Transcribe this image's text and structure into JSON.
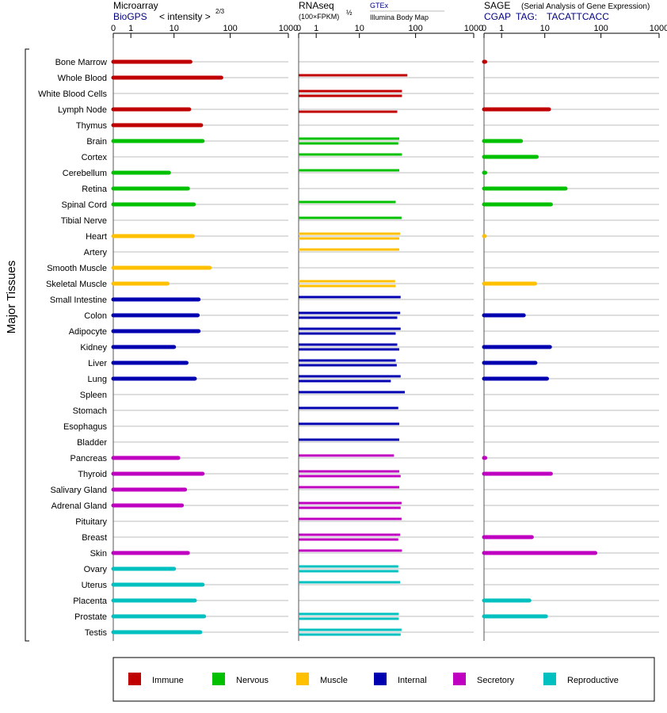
{
  "header": {
    "microarray": {
      "title": "Microarray",
      "source": "BioGPS",
      "unit": "< intensity >",
      "unit_exp": "2/3"
    },
    "rnaseq": {
      "title": "RNAseq",
      "unit": "(100×FPKM)",
      "unit_exp": "½",
      "source_a": "GTEx",
      "source_b": "Illumina Body Map"
    },
    "sage": {
      "title": "SAGE",
      "subtitle": "(Serial Analysis of Gene Expression)",
      "source": "CGAP",
      "tag_label": "TAG:",
      "tag": "TACATTCACC"
    },
    "axis_ticks": [
      "0",
      "1",
      "10",
      "100",
      "1000"
    ],
    "ylabel": "Major Tissues"
  },
  "legend": [
    {
      "label": "Immune",
      "color": "#c00000"
    },
    {
      "label": "Nervous",
      "color": "#00c000"
    },
    {
      "label": "Muscle",
      "color": "#ffc000"
    },
    {
      "label": "Internal",
      "color": "#0000b0"
    },
    {
      "label": "Secretory",
      "color": "#c000c0"
    },
    {
      "label": "Reproductive",
      "color": "#00c0c0"
    }
  ],
  "chart_data": {
    "type": "bar",
    "orientation": "horizontal",
    "xscale": "log1p",
    "xlim": [
      0,
      1000
    ],
    "categories": [
      "Bone Marrow",
      "Whole Blood",
      "White Blood Cells",
      "Lymph Node",
      "Thymus",
      "Brain",
      "Cortex",
      "Cerebellum",
      "Retina",
      "Spinal Cord",
      "Tibial Nerve",
      "Heart",
      "Artery",
      "Smooth Muscle",
      "Skeletal Muscle",
      "Small Intestine",
      "Colon",
      "Adipocyte",
      "Kidney",
      "Liver",
      "Lung",
      "Spleen",
      "Stomach",
      "Esophagus",
      "Bladder",
      "Pancreas",
      "Thyroid",
      "Salivary Gland",
      "Adrenal Gland",
      "Pituitary",
      "Breast",
      "Skin",
      "Ovary",
      "Uterus",
      "Placenta",
      "Prostate",
      "Testis"
    ],
    "groups": [
      "Immune",
      "Immune",
      "Immune",
      "Immune",
      "Immune",
      "Nervous",
      "Nervous",
      "Nervous",
      "Nervous",
      "Nervous",
      "Nervous",
      "Muscle",
      "Muscle",
      "Muscle",
      "Muscle",
      "Internal",
      "Internal",
      "Internal",
      "Internal",
      "Internal",
      "Internal",
      "Internal",
      "Internal",
      "Internal",
      "Internal",
      "Secretory",
      "Secretory",
      "Secretory",
      "Secretory",
      "Secretory",
      "Secretory",
      "Secretory",
      "Reproductive",
      "Reproductive",
      "Reproductive",
      "Reproductive",
      "Reproductive"
    ],
    "panels": [
      {
        "name": "Microarray",
        "source": "BioGPS",
        "values": [
          20,
          70,
          null,
          19,
          31,
          33,
          null,
          8,
          18,
          23,
          null,
          22,
          null,
          44,
          7.5,
          28,
          27,
          28,
          10,
          17,
          24,
          null,
          null,
          null,
          null,
          12,
          33,
          16,
          14,
          null,
          null,
          18,
          10,
          33,
          24,
          35,
          30
        ]
      },
      {
        "name": "RNAseq",
        "source_a": "GTEx",
        "source_b": "Illumina Body Map",
        "values_a": [
          null,
          72,
          58,
          null,
          null,
          52,
          58,
          52,
          null,
          45,
          57,
          54,
          52,
          null,
          44,
          55,
          54,
          55,
          48,
          45,
          55,
          65,
          50,
          52,
          52,
          42,
          52,
          52,
          57,
          57,
          54,
          58,
          50,
          54,
          null,
          51,
          57
        ],
        "values_b": [
          null,
          null,
          58,
          48,
          null,
          50,
          null,
          null,
          null,
          null,
          null,
          52,
          null,
          null,
          45,
          null,
          48,
          45,
          52,
          47,
          37,
          null,
          null,
          null,
          null,
          null,
          55,
          null,
          55,
          null,
          50,
          null,
          50,
          null,
          null,
          51,
          55
        ]
      },
      {
        "name": "SAGE",
        "source": "CGAP",
        "values": [
          0.05,
          null,
          null,
          12,
          null,
          3.3,
          7,
          0.05,
          24,
          13,
          null,
          0.03,
          null,
          null,
          6.5,
          null,
          3.8,
          null,
          12.5,
          6.6,
          11,
          null,
          null,
          null,
          null,
          0.05,
          13,
          null,
          null,
          null,
          5.6,
          80,
          null,
          null,
          5,
          10.5,
          null
        ]
      }
    ]
  }
}
